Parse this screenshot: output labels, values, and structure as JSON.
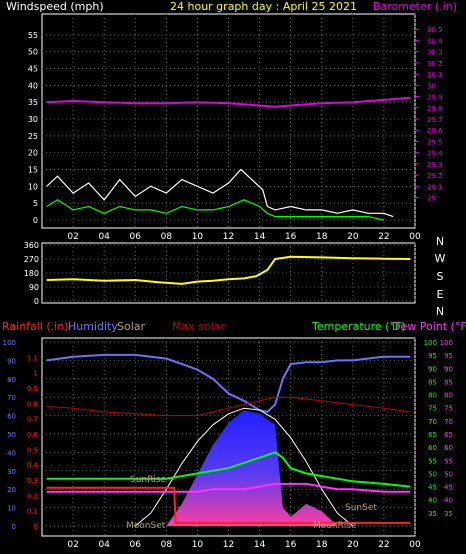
{
  "header": {
    "left_title": "Windspeed (mph)",
    "center_title": "24 hour graph day : April 25 2021",
    "right_title": "Barometer (.in)"
  },
  "colors": {
    "background": "#000000",
    "axis": "#ffffff",
    "grid": "#555555",
    "wind_gust": "#ffffff",
    "wind_avg": "#00ff00",
    "barometer": "#e000e0",
    "direction": "#ffff00",
    "rainfall": "#ff2020",
    "humidity": "#7070ff",
    "solar_curve": "#ffffff",
    "max_solar": "#c00000",
    "temperature": "#00ff00",
    "dew_point": "#ff33ff",
    "solar_fill_top": "#2020ff",
    "solar_fill_bottom": "#ff3fa0",
    "title_yellow": "#ffff00",
    "label_tan": "#b8a060"
  },
  "chart_data": [
    {
      "type": "line",
      "name": "wind-barometer",
      "x_ticks": [
        "02",
        "04",
        "06",
        "08",
        "10",
        "12",
        "14",
        "16",
        "18",
        "20",
        "22",
        "00"
      ],
      "xlim": [
        0,
        24
      ],
      "left_axis": {
        "label": "Windspeed (mph)",
        "range": [
          0,
          60
        ],
        "ticks": [
          "0",
          "5",
          "10",
          "15",
          "20",
          "25",
          "30",
          "35",
          "40",
          "45",
          "50",
          "55"
        ]
      },
      "right_axis": {
        "label": "Barometer (.in)",
        "range": [
          28.8,
          30.6
        ],
        "ticks": [
          "29",
          "29.1",
          "29.2",
          "29.3",
          "29.4",
          "29.5",
          "29.6",
          "29.7",
          "29.8",
          "29.9",
          "30",
          "30.1",
          "30.2",
          "30.3",
          "30.4",
          "30.5"
        ]
      },
      "series": [
        {
          "key": "barometer",
          "axis": "right",
          "x": [
            0.3,
            2,
            4,
            6,
            8,
            10,
            12,
            14,
            15,
            16,
            18,
            20,
            22,
            23.7
          ],
          "values": [
            29.85,
            29.86,
            29.85,
            29.84,
            29.84,
            29.85,
            29.84,
            29.82,
            29.81,
            29.82,
            29.84,
            29.85,
            29.87,
            29.89
          ]
        },
        {
          "key": "wind_gust",
          "axis": "left",
          "x": [
            0.3,
            1,
            2,
            3,
            4,
            5,
            6,
            7,
            8,
            9,
            10,
            11,
            12,
            12.8,
            13.5,
            14.2,
            14.5,
            15,
            16,
            17,
            18,
            19,
            20,
            21,
            22,
            22.6
          ],
          "values": [
            10,
            13,
            8,
            11,
            6,
            12,
            7,
            10,
            8,
            12,
            10,
            8,
            11,
            15,
            12,
            9,
            4,
            3,
            4,
            3,
            3,
            2,
            3,
            2,
            2,
            1
          ]
        },
        {
          "key": "wind_avg",
          "axis": "left",
          "x": [
            0.3,
            1,
            2,
            3,
            4,
            5,
            6,
            7,
            8,
            9,
            10,
            11,
            12,
            13,
            14,
            14.5,
            15,
            16,
            17,
            18,
            19,
            20,
            21,
            22
          ],
          "values": [
            4,
            6,
            3,
            4,
            2,
            4,
            3,
            3,
            2,
            4,
            3,
            3,
            4,
            6,
            4,
            2,
            1,
            1,
            1,
            1,
            1,
            1,
            1,
            0
          ]
        }
      ]
    },
    {
      "type": "line",
      "name": "wind-direction",
      "x_ticks": [
        "02",
        "04",
        "06",
        "08",
        "10",
        "12",
        "14",
        "16",
        "18",
        "20",
        "22",
        "00"
      ],
      "xlim": [
        0,
        24
      ],
      "y_axis": {
        "range": [
          0,
          360
        ],
        "ticks": [
          "0",
          "90",
          "180",
          "270",
          "360"
        ]
      },
      "compass_labels": [
        "N",
        "W",
        "S",
        "E",
        "N"
      ],
      "series": [
        {
          "key": "direction",
          "x": [
            0.3,
            2,
            4,
            6,
            7.5,
            9,
            10,
            11,
            12,
            13,
            13.8,
            14.5,
            15,
            16,
            18,
            20,
            22,
            23.7
          ],
          "values": [
            135,
            140,
            130,
            135,
            120,
            110,
            125,
            130,
            140,
            145,
            160,
            200,
            270,
            285,
            280,
            275,
            272,
            270
          ]
        }
      ]
    },
    {
      "type": "line",
      "name": "rain-humidity-solar-temperature",
      "x_ticks": [
        "02",
        "04",
        "06",
        "08",
        "10",
        "12",
        "14",
        "16",
        "18",
        "20",
        "22",
        "00"
      ],
      "xlim": [
        0,
        24
      ],
      "header_labels": {
        "rainfall": "Rainfall (.in)",
        "humidity": "Humidity",
        "solar": "Solar",
        "max_solar": "Max solar",
        "temperature": "Temperature (°F)",
        "dew_point": "Dew Point (°F)"
      },
      "humidity_axis": {
        "range": [
          0,
          100
        ],
        "ticks": [
          "0",
          "10",
          "20",
          "30",
          "40",
          "50",
          "60",
          "70",
          "80",
          "90",
          "100"
        ]
      },
      "rain_axis": {
        "range": [
          0,
          1.2
        ],
        "ticks": [
          "0",
          "0.1",
          "0.2",
          "0.3",
          "0.4",
          "0.5",
          "0.6",
          "0.7",
          "0.8",
          "0.9",
          "1",
          "1.1"
        ]
      },
      "temp_axis": {
        "range": [
          30,
          100
        ],
        "ticks": [
          "35",
          "40",
          "45",
          "50",
          "55",
          "60",
          "65",
          "70",
          "75",
          "80",
          "85",
          "90",
          "95",
          "100"
        ]
      },
      "annotations": {
        "sunrise": "SunRise",
        "sunset": "SunSet",
        "moonset": "MoonSet",
        "moonrise": "MoonRise"
      },
      "series": [
        {
          "key": "humidity",
          "axis": "humidity",
          "x": [
            0.3,
            2,
            4,
            6,
            8,
            9,
            10,
            11,
            12,
            13,
            14,
            14.5,
            15,
            15.5,
            16,
            17,
            18,
            19,
            20,
            22,
            23.7
          ],
          "values": [
            90,
            92,
            93,
            93,
            91,
            88,
            85,
            80,
            72,
            68,
            63,
            62,
            66,
            80,
            88,
            89,
            89,
            90,
            90,
            92,
            92
          ]
        },
        {
          "key": "max_solar",
          "axis": "humidity",
          "x": [
            0.3,
            2,
            4,
            6,
            8,
            9,
            10,
            11,
            12,
            13,
            14,
            15,
            16,
            17,
            18,
            19,
            20,
            22,
            23.7
          ],
          "values": [
            65,
            64,
            62,
            61,
            60,
            60,
            60,
            62,
            64,
            66,
            68,
            70,
            70,
            69,
            68,
            67,
            66,
            64,
            62
          ]
        },
        {
          "key": "solar_curve",
          "axis": "humidity",
          "x": [
            6,
            7,
            8,
            9,
            10,
            11,
            12,
            13,
            14,
            15,
            16,
            17,
            18,
            19,
            20
          ],
          "values": [
            0,
            7,
            20,
            34,
            46,
            55,
            61,
            64,
            63,
            58,
            48,
            35,
            20,
            7,
            0
          ]
        },
        {
          "key": "solar_area",
          "axis": "humidity",
          "x": [
            8,
            9,
            10,
            11,
            12,
            13,
            14,
            15,
            15.5,
            16,
            17,
            18,
            19
          ],
          "values": [
            0,
            12,
            28,
            44,
            56,
            63,
            61,
            55,
            10,
            5,
            12,
            8,
            0
          ]
        },
        {
          "key": "temperature",
          "axis": "temp",
          "x": [
            0.3,
            2,
            4,
            6,
            8,
            9,
            10,
            11,
            12,
            13,
            14,
            15,
            15.5,
            16,
            17,
            18,
            19,
            20,
            22,
            23.7
          ],
          "values": [
            48,
            48,
            48,
            48,
            48,
            49,
            50,
            51,
            52,
            54,
            56,
            58,
            56,
            52,
            50,
            49,
            48,
            47,
            46,
            45
          ]
        },
        {
          "key": "dew_point",
          "axis": "temp",
          "x": [
            0.3,
            2,
            4,
            6,
            8,
            9,
            10,
            11,
            12,
            13,
            14,
            15,
            16,
            17,
            18,
            19,
            20,
            22,
            23.7
          ],
          "values": [
            43,
            43,
            43,
            43,
            43,
            43,
            43,
            44,
            44,
            44,
            45,
            46,
            46,
            46,
            45,
            44,
            44,
            43,
            43
          ]
        },
        {
          "key": "rainfall",
          "axis": "rain",
          "x": [
            0.3,
            6,
            8.5,
            8.6,
            23.7
          ],
          "values": [
            0.25,
            0.25,
            0.25,
            0.02,
            0.02
          ]
        }
      ]
    }
  ]
}
